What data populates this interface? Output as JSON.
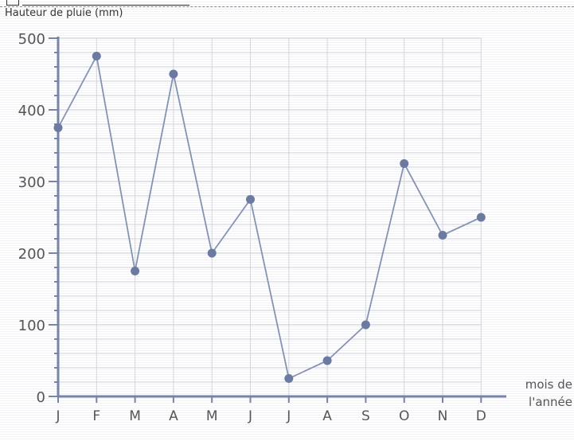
{
  "chart_data": {
    "type": "line",
    "categories": [
      "J",
      "F",
      "M",
      "A",
      "M",
      "J",
      "J",
      "A",
      "S",
      "O",
      "N",
      "D"
    ],
    "values": [
      375,
      475,
      175,
      450,
      200,
      275,
      25,
      50,
      100,
      325,
      225,
      250
    ],
    "ylabel": "Hauteur de pluie (mm)",
    "xlabel_line1": "mois de",
    "xlabel_line2": "l'année",
    "ylim": [
      0,
      500
    ],
    "yticks": [
      0,
      100,
      200,
      300,
      400,
      500
    ],
    "grid": true,
    "colors": {
      "line": "#8593b3",
      "marker": "#6b7aa1",
      "axis": "#7684a8",
      "grid": "#d4d6dc",
      "tick_text": "#555555"
    }
  }
}
